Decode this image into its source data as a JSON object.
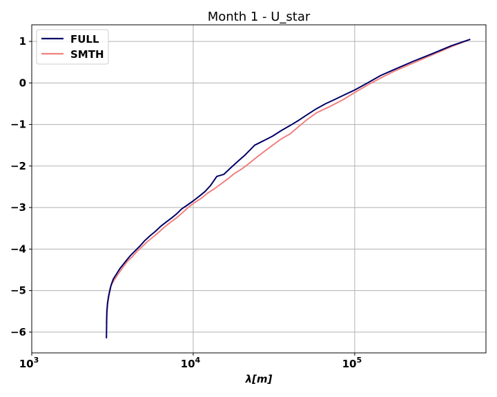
{
  "chart_data": {
    "type": "line",
    "title": "Month 1 - U_star",
    "xlabel": "λ[m]",
    "ylabel": "",
    "xscale": "log",
    "xlim": [
      1000,
      650000
    ],
    "ylim": [
      -6.5,
      1.4
    ],
    "grid": true,
    "legend_position": "top-left",
    "x_ticks": [
      {
        "value": 1000,
        "base": "10",
        "exp": "3"
      },
      {
        "value": 10000,
        "base": "10",
        "exp": "4"
      },
      {
        "value": 100000,
        "base": "10",
        "exp": "5"
      }
    ],
    "y_ticks": [
      {
        "value": 1,
        "label": "1"
      },
      {
        "value": 0,
        "label": "0"
      },
      {
        "value": -1,
        "label": "−1"
      },
      {
        "value": -2,
        "label": "−2"
      },
      {
        "value": -3,
        "label": "−3"
      },
      {
        "value": -4,
        "label": "−4"
      },
      {
        "value": -5,
        "label": "−5"
      },
      {
        "value": -6,
        "label": "−6"
      }
    ],
    "series": [
      {
        "name": "FULL",
        "color": "#000066",
        "x": [
          2900,
          2910,
          2920,
          2950,
          3000,
          3100,
          3200,
          3350,
          3500,
          3700,
          3900,
          4100,
          4400,
          4700,
          5000,
          5400,
          5800,
          6300,
          6800,
          7300,
          7900,
          8500,
          9200,
          10000,
          10800,
          11800,
          12800,
          14000,
          15500,
          17000,
          19000,
          21000,
          24000,
          27000,
          31000,
          35000,
          40000,
          45000,
          50000,
          58000,
          66000,
          75000,
          85000,
          100000,
          120000,
          145000,
          175000,
          230000,
          300000,
          400000,
          520000
        ],
        "y": [
          -6.15,
          -5.75,
          -5.5,
          -5.3,
          -5.12,
          -4.87,
          -4.72,
          -4.6,
          -4.48,
          -4.36,
          -4.25,
          -4.15,
          -4.03,
          -3.92,
          -3.8,
          -3.68,
          -3.58,
          -3.45,
          -3.35,
          -3.26,
          -3.15,
          -3.03,
          -2.94,
          -2.84,
          -2.74,
          -2.62,
          -2.47,
          -2.25,
          -2.2,
          -2.05,
          -1.88,
          -1.73,
          -1.5,
          -1.4,
          -1.28,
          -1.15,
          -1.02,
          -0.9,
          -0.78,
          -0.62,
          -0.5,
          -0.4,
          -0.3,
          -0.17,
          0.0,
          0.18,
          0.32,
          0.52,
          0.7,
          0.9,
          1.05
        ]
      },
      {
        "name": "SMTH",
        "color": "#f08080",
        "x": [
          2900,
          2915,
          2940,
          2980,
          3050,
          3150,
          3300,
          3500,
          3700,
          3900,
          4200,
          4500,
          4800,
          5200,
          5600,
          6100,
          6600,
          7200,
          7800,
          8500,
          9300,
          10200,
          11200,
          12300,
          13500,
          15000,
          16500,
          18000,
          20000,
          22000,
          24500,
          27500,
          31000,
          35000,
          40000,
          45000,
          50000,
          58000,
          70000,
          85000,
          100000,
          120000,
          145000,
          175000,
          230000,
          300000,
          400000,
          520000
        ],
        "y": [
          -5.8,
          -5.5,
          -5.3,
          -5.15,
          -4.95,
          -4.82,
          -4.7,
          -4.55,
          -4.42,
          -4.3,
          -4.18,
          -4.05,
          -3.95,
          -3.82,
          -3.72,
          -3.6,
          -3.48,
          -3.36,
          -3.26,
          -3.14,
          -3.0,
          -2.88,
          -2.78,
          -2.65,
          -2.55,
          -2.42,
          -2.3,
          -2.18,
          -2.07,
          -1.95,
          -1.8,
          -1.65,
          -1.5,
          -1.35,
          -1.22,
          -1.05,
          -0.9,
          -0.72,
          -0.57,
          -0.4,
          -0.23,
          -0.05,
          0.12,
          0.28,
          0.48,
          0.67,
          0.88,
          1.05
        ]
      }
    ]
  }
}
